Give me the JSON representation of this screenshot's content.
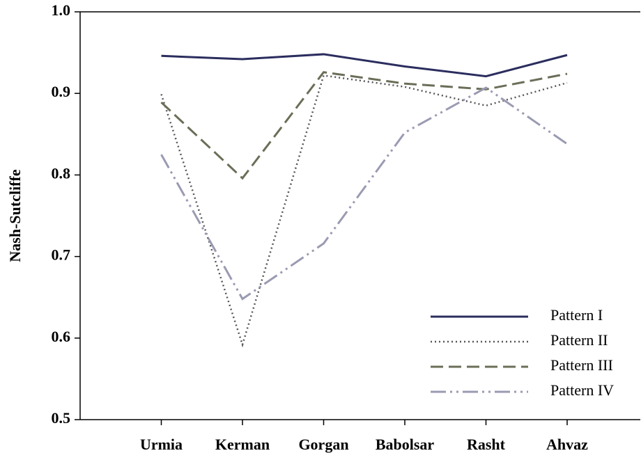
{
  "chart_data": {
    "type": "line",
    "y_label": "Nash-Sutcliffe",
    "categories": [
      "Urmia",
      "Kerman",
      "Gorgan",
      "Babolsar",
      "Rasht",
      "Ahvaz"
    ],
    "series": [
      {
        "name": "Pattern I",
        "color": "#2b2d5e",
        "values": [
          0.946,
          0.942,
          0.948,
          0.933,
          0.921,
          0.947
        ]
      },
      {
        "name": "Pattern II",
        "color": "#555555",
        "values": [
          0.899,
          0.592,
          0.922,
          0.908,
          0.885,
          0.913
        ]
      },
      {
        "name": "Pattern III",
        "color": "#6b6e58",
        "values": [
          0.889,
          0.796,
          0.926,
          0.912,
          0.905,
          0.924
        ]
      },
      {
        "name": "Pattern IV",
        "color": "#9a9ab2",
        "values": [
          0.825,
          0.648,
          0.716,
          0.852,
          0.907,
          0.838
        ]
      }
    ],
    "ylim": [
      0.5,
      1.0
    ],
    "yticks": [
      0.5,
      0.6,
      0.7,
      0.8,
      0.9,
      {
        "value": 1.0,
        "label": "1.0"
      }
    ],
    "legend": "lower right"
  }
}
